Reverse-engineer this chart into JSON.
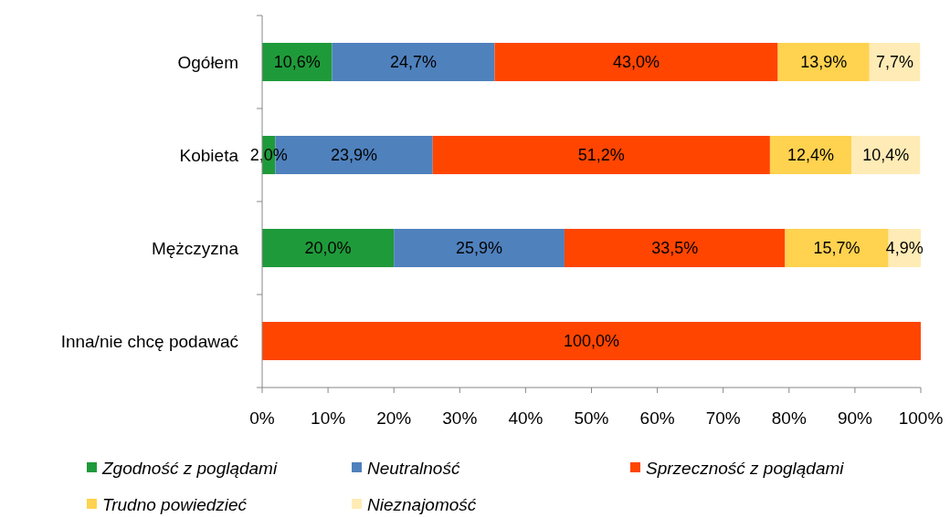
{
  "chart_data": {
    "type": "bar",
    "orientation": "horizontal",
    "stacked": true,
    "categories": [
      "Ogółem",
      "Kobieta",
      "Mężczyzna",
      "Inna/nie chcę podawać"
    ],
    "series": [
      {
        "name": "Zgodność z poglądami",
        "color": "#1f9a3a",
        "values": [
          10.6,
          2.0,
          20.0,
          null
        ],
        "value_labels": [
          "10,6%",
          "2,0%",
          "20,0%",
          null
        ]
      },
      {
        "name": "Neutralność",
        "color": "#4f81bd",
        "values": [
          24.7,
          23.9,
          25.9,
          null
        ],
        "value_labels": [
          "24,7%",
          "23,9%",
          "25,9%",
          null
        ]
      },
      {
        "name": "Sprzeczność z poglądami",
        "color": "#ff4500",
        "values": [
          43.0,
          51.2,
          33.5,
          100.0
        ],
        "value_labels": [
          "43,0%",
          "51,2%",
          "33,5%",
          "100,0%"
        ]
      },
      {
        "name": "Trudno powiedzieć",
        "color": "#ffd24f",
        "values": [
          13.9,
          12.4,
          15.7,
          null
        ],
        "value_labels": [
          "13,9%",
          "12,4%",
          "15,7%",
          null
        ]
      },
      {
        "name": "Nieznajomość",
        "color": "#ffebb5",
        "values": [
          7.7,
          10.4,
          4.9,
          null
        ],
        "value_labels": [
          "7,7%",
          "10,4%",
          "4,9%",
          null
        ]
      }
    ],
    "xlim": [
      0,
      100
    ],
    "xticks": [
      {
        "value": 0,
        "label": "0%"
      },
      {
        "value": 10,
        "label": "10%"
      },
      {
        "value": 20,
        "label": "20%"
      },
      {
        "value": 30,
        "label": "30%"
      },
      {
        "value": 40,
        "label": "40%"
      },
      {
        "value": 50,
        "label": "50%"
      },
      {
        "value": 60,
        "label": "60%"
      },
      {
        "value": 70,
        "label": "70%"
      },
      {
        "value": 80,
        "label": "80%"
      },
      {
        "value": 90,
        "label": "90%"
      },
      {
        "value": 100,
        "label": "100%"
      }
    ],
    "legend": "bottom",
    "grid": false
  }
}
